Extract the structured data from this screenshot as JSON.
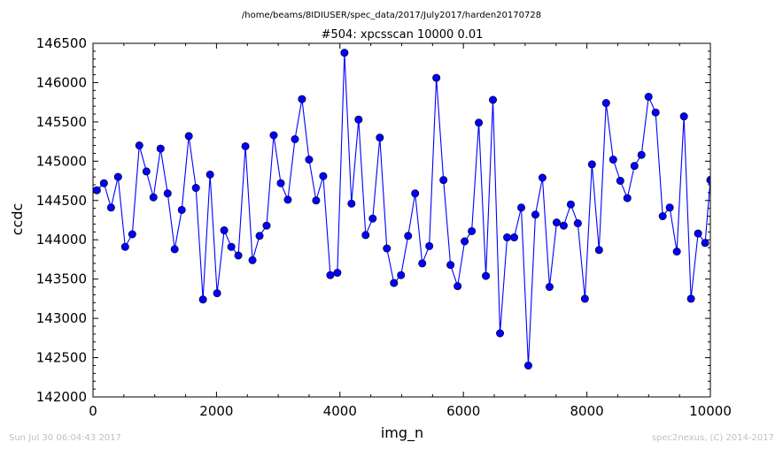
{
  "figure": {
    "suptitle": "/home/beams/8IDIUSER/spec_data/2017/July2017/harden20170728",
    "footer_left": "Sun Jul 30 06:04:43 2017",
    "footer_right": "spec2nexus, (C) 2014-2017"
  },
  "chart_data": {
    "type": "line",
    "title": "#504: xpcsscan 10000 0.01",
    "xlabel": "img_n",
    "ylabel": "ccdc",
    "xlim": [
      0,
      10000
    ],
    "ylim": [
      142000,
      146500
    ],
    "xticks": [
      0,
      2000,
      4000,
      6000,
      8000,
      10000
    ],
    "yticks": [
      142000,
      142500,
      143000,
      143500,
      144000,
      144500,
      145000,
      145500,
      146000,
      146500
    ],
    "grid": false,
    "line_color": "#0000ff",
    "marker": "circle",
    "marker_color": "#0000ff",
    "series": [
      {
        "x": [
          62,
          177,
          292,
          406,
          521,
          636,
          750,
          865,
          979,
          1094,
          1209,
          1323,
          1438,
          1552,
          1667,
          1781,
          1896,
          2010,
          2125,
          2240,
          2354,
          2469,
          2583,
          2698,
          2812,
          2927,
          3042,
          3156,
          3271,
          3385,
          3500,
          3614,
          3729,
          3844,
          3958,
          4073,
          4187,
          4302,
          4416,
          4531,
          4646,
          4760,
          4875,
          4989,
          5104,
          5218,
          5333,
          5447,
          5562,
          5677,
          5791,
          5906,
          6020,
          6135,
          6249,
          6364,
          6478,
          6593,
          6708,
          6822,
          6937,
          7051,
          7166,
          7280,
          7395,
          7510,
          7624,
          7739,
          7853,
          7968,
          8082,
          8197,
          8311,
          8426,
          8541,
          8655,
          8770,
          8884,
          8999,
          9113,
          9228,
          9342,
          9457,
          9572,
          9686,
          9801,
          9915,
          10000
        ],
        "y": [
          144630,
          144720,
          144410,
          144800,
          143910,
          144070,
          145200,
          144870,
          144540,
          145160,
          144590,
          143880,
          144380,
          145320,
          144660,
          143240,
          144830,
          143320,
          144120,
          143910,
          143800,
          145190,
          143740,
          144050,
          144180,
          145330,
          144720,
          144510,
          145280,
          145790,
          145020,
          144500,
          144810,
          143550,
          143580,
          146380,
          144460,
          145530,
          144060,
          144270,
          145300,
          143890,
          143450,
          143550,
          144050,
          144590,
          143700,
          143920,
          146060,
          144760,
          143680,
          143410,
          143980,
          144110,
          145490,
          143540,
          145780,
          142810,
          144030,
          144030,
          144410,
          142400,
          144320,
          144790,
          143400,
          144220,
          144180,
          144450,
          144210,
          143250,
          144960,
          143870,
          145740,
          145020,
          144750,
          144530,
          144940,
          145080,
          145820,
          145620,
          144300,
          144410,
          143850,
          145570,
          143250,
          144080,
          143960,
          144760
        ]
      }
    ]
  }
}
